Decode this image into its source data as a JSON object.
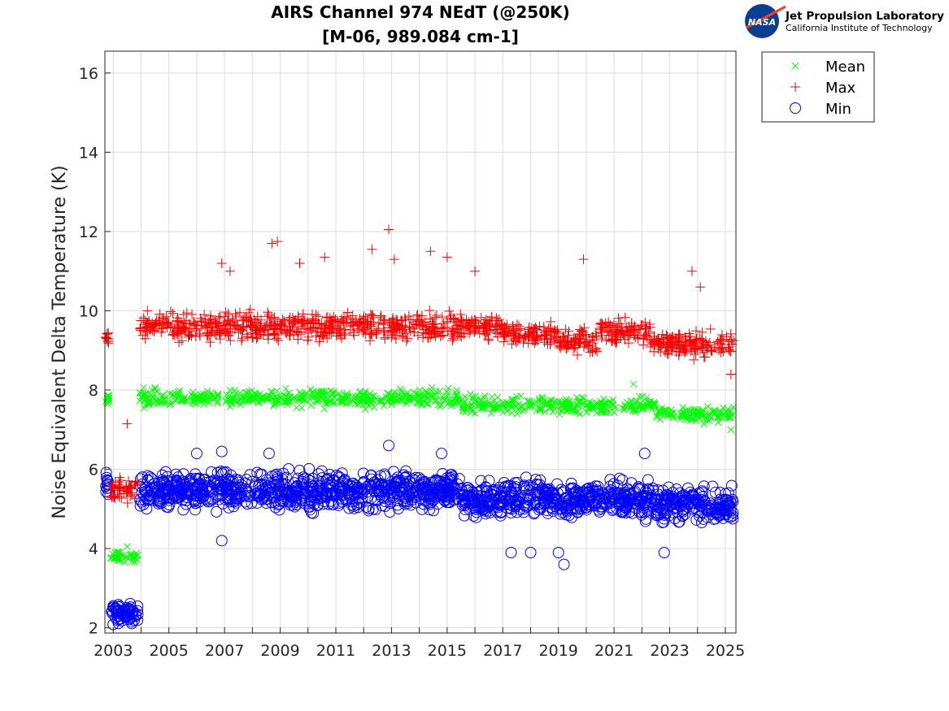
{
  "logo": {
    "org": "Jet Propulsion Laboratory",
    "sub": "California Institute of Technology",
    "badge": "NASA"
  },
  "chart_data": {
    "type": "scatter",
    "title": [
      "AIRS Channel 974 NEdT (@250K)",
      "[M-06, 989.084 cm-1]"
    ],
    "xlabel": "",
    "ylabel": "Noise Equivalent Delta Temperature (K)",
    "xlim": [
      2002.7,
      2025.38
    ],
    "ylim": [
      1.87,
      16.55
    ],
    "xticks": [
      "2003",
      "2005",
      "2007",
      "2009",
      "2011",
      "2013",
      "2015",
      "2017",
      "2019",
      "2021",
      "2023",
      "2025"
    ],
    "yticks": [
      "2",
      "4",
      "6",
      "8",
      "10",
      "12",
      "14",
      "16"
    ],
    "grid": true,
    "legend_position": "outside-top-right",
    "series": [
      {
        "name": "Mean",
        "marker": "x",
        "color": "#00ff00",
        "bands": [
          {
            "from": 2002.72,
            "to": 2002.85,
            "low": 7.6,
            "high": 8.0
          },
          {
            "from": 2002.9,
            "to": 2003.9,
            "low": 3.6,
            "high": 4.0
          },
          {
            "from": 2003.95,
            "to": 2015.5,
            "low": 7.5,
            "high": 8.1
          },
          {
            "from": 2015.5,
            "to": 2019.0,
            "low": 7.3,
            "high": 7.95
          },
          {
            "from": 2019.0,
            "to": 2022.5,
            "low": 7.3,
            "high": 7.9
          },
          {
            "from": 2022.5,
            "to": 2025.3,
            "low": 7.1,
            "high": 7.7
          }
        ],
        "outliers": [
          [
            2003.5,
            4.05
          ],
          [
            2021.7,
            8.15
          ],
          [
            2025.2,
            7.0
          ]
        ]
      },
      {
        "name": "Max",
        "marker": "+",
        "color": "#ff0000",
        "bands": [
          {
            "from": 2002.72,
            "to": 2002.85,
            "low": 9.0,
            "high": 9.6
          },
          {
            "from": 2002.9,
            "to": 2003.9,
            "low": 5.1,
            "high": 5.9
          },
          {
            "from": 2003.95,
            "to": 2015.5,
            "low": 9.1,
            "high": 10.1
          },
          {
            "from": 2015.5,
            "to": 2017.0,
            "low": 9.2,
            "high": 10.0
          },
          {
            "from": 2017.0,
            "to": 2019.0,
            "low": 9.0,
            "high": 9.8
          },
          {
            "from": 2019.0,
            "to": 2020.5,
            "low": 8.8,
            "high": 9.7
          },
          {
            "from": 2020.5,
            "to": 2022.3,
            "low": 9.0,
            "high": 9.9
          },
          {
            "from": 2022.3,
            "to": 2025.3,
            "low": 8.7,
            "high": 9.6
          }
        ],
        "outliers": [
          [
            2003.5,
            7.15
          ],
          [
            2006.9,
            11.2
          ],
          [
            2007.2,
            11.0
          ],
          [
            2008.7,
            11.7
          ],
          [
            2008.9,
            11.75
          ],
          [
            2009.7,
            11.2
          ],
          [
            2010.6,
            11.35
          ],
          [
            2012.3,
            11.55
          ],
          [
            2012.9,
            12.05
          ],
          [
            2013.1,
            11.3
          ],
          [
            2014.4,
            11.5
          ],
          [
            2015.0,
            11.35
          ],
          [
            2016.0,
            11.0
          ],
          [
            2019.9,
            11.3
          ],
          [
            2023.8,
            11.0
          ],
          [
            2024.1,
            10.6
          ],
          [
            2025.2,
            8.4
          ]
        ]
      },
      {
        "name": "Min",
        "marker": "o",
        "color": "#0000ff",
        "bands": [
          {
            "from": 2002.72,
            "to": 2002.85,
            "low": 5.0,
            "high": 6.1
          },
          {
            "from": 2002.9,
            "to": 2003.9,
            "low": 2.0,
            "high": 2.7
          },
          {
            "from": 2003.95,
            "to": 2015.5,
            "low": 4.8,
            "high": 6.1
          },
          {
            "from": 2015.5,
            "to": 2020.0,
            "low": 4.6,
            "high": 5.9
          },
          {
            "from": 2020.0,
            "to": 2022.5,
            "low": 4.6,
            "high": 5.9
          },
          {
            "from": 2022.5,
            "to": 2025.3,
            "low": 4.5,
            "high": 5.7
          }
        ],
        "outliers": [
          [
            2006.9,
            4.2
          ],
          [
            2006.0,
            6.4
          ],
          [
            2006.9,
            6.45
          ],
          [
            2008.6,
            6.4
          ],
          [
            2012.9,
            6.6
          ],
          [
            2014.8,
            6.4
          ],
          [
            2017.3,
            3.9
          ],
          [
            2018.0,
            3.9
          ],
          [
            2019.0,
            3.9
          ],
          [
            2019.2,
            3.6
          ],
          [
            2022.1,
            6.4
          ],
          [
            2022.8,
            3.9
          ]
        ]
      }
    ]
  }
}
